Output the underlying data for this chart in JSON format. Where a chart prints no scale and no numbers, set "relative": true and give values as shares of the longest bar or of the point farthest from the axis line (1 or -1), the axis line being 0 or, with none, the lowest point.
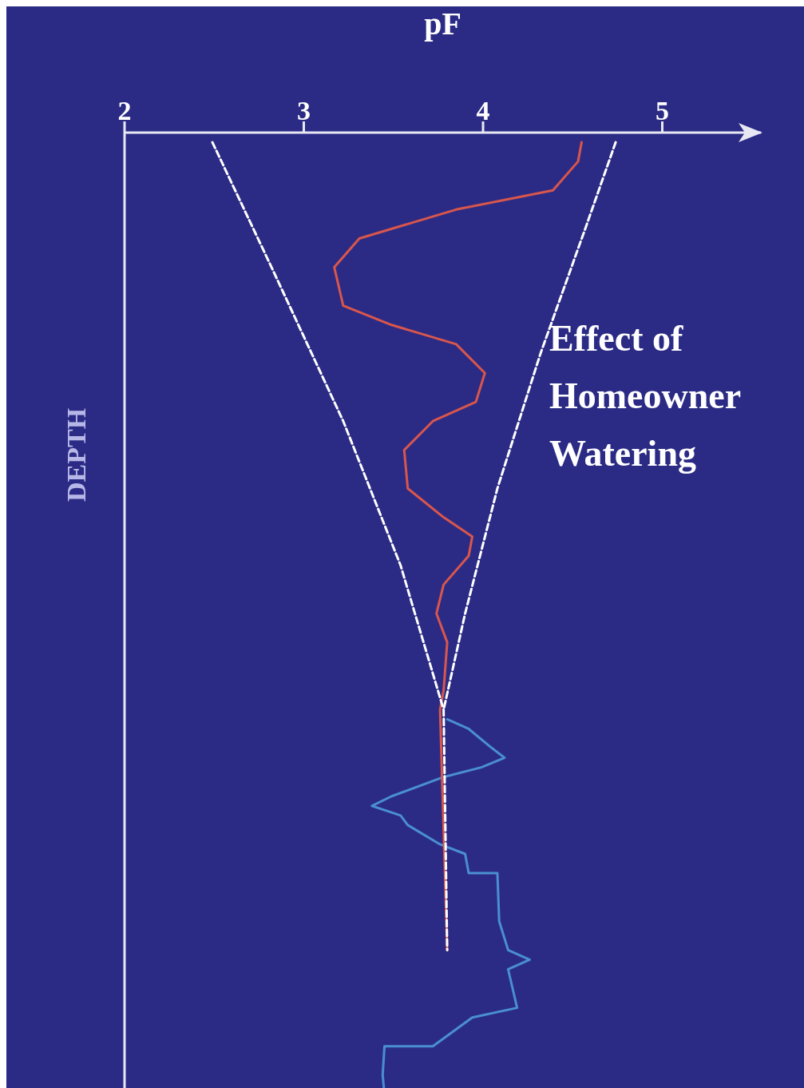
{
  "chart_data": {
    "type": "line",
    "xlabel": "pF",
    "ylabel": "DEPTH",
    "relative": true,
    "xlim": [
      2,
      5.55
    ],
    "xticks": [
      2,
      3,
      4,
      5
    ],
    "grid": false,
    "marker": "none",
    "annotations": [
      "Effect of Homeowner Watering"
    ],
    "series": [
      {
        "color": "#ffffff",
        "line_style": "dashed",
        "x": [
          2.49,
          2.82,
          3.22,
          3.54,
          3.78,
          3.8
        ],
        "values": [
          -0.01,
          -0.14,
          -0.3,
          -0.45,
          -0.6,
          -0.85
        ]
      },
      {
        "color": "#ffffff",
        "line_style": "dashed",
        "x": [
          4.74,
          4.57,
          4.32,
          4.08,
          3.9,
          3.78
        ],
        "values": [
          -0.01,
          -0.1,
          -0.23,
          -0.37,
          -0.5,
          -0.6
        ]
      },
      {
        "color": "#d9564c",
        "line_style": "solid",
        "x": [
          4.55,
          4.53,
          4.39,
          3.85,
          3.31,
          3.17,
          3.22,
          3.49,
          3.85,
          4.01,
          3.96,
          3.72,
          3.56,
          3.58,
          3.78,
          3.94,
          3.92,
          3.78,
          3.74,
          3.8,
          3.78,
          3.76,
          3.8
        ],
        "values": [
          -0.01,
          -0.03,
          -0.06,
          -0.08,
          -0.11,
          -0.14,
          -0.18,
          -0.2,
          -0.22,
          -0.25,
          -0.28,
          -0.3,
          -0.33,
          -0.37,
          -0.4,
          -0.42,
          -0.44,
          -0.47,
          -0.5,
          -0.53,
          -0.58,
          -0.6,
          -0.85
        ]
      },
      {
        "color": "#4a8fd0",
        "line_style": "solid",
        "x": [
          3.8,
          3.92,
          4.05,
          4.12,
          3.99,
          3.78,
          3.49,
          3.38,
          3.54,
          3.58,
          3.76,
          3.9,
          3.92,
          4.08,
          4.09,
          4.14,
          4.26,
          4.14,
          4.19,
          3.94,
          3.72,
          3.45,
          3.44,
          3.45
        ],
        "values": [
          -0.61,
          -0.62,
          -0.64,
          -0.65,
          -0.66,
          -0.67,
          -0.69,
          -0.7,
          -0.71,
          -0.72,
          -0.74,
          -0.75,
          -0.77,
          -0.77,
          -0.82,
          -0.85,
          -0.86,
          -0.87,
          -0.91,
          -0.92,
          -0.95,
          -0.95,
          -0.98,
          -1.0
        ]
      }
    ]
  }
}
